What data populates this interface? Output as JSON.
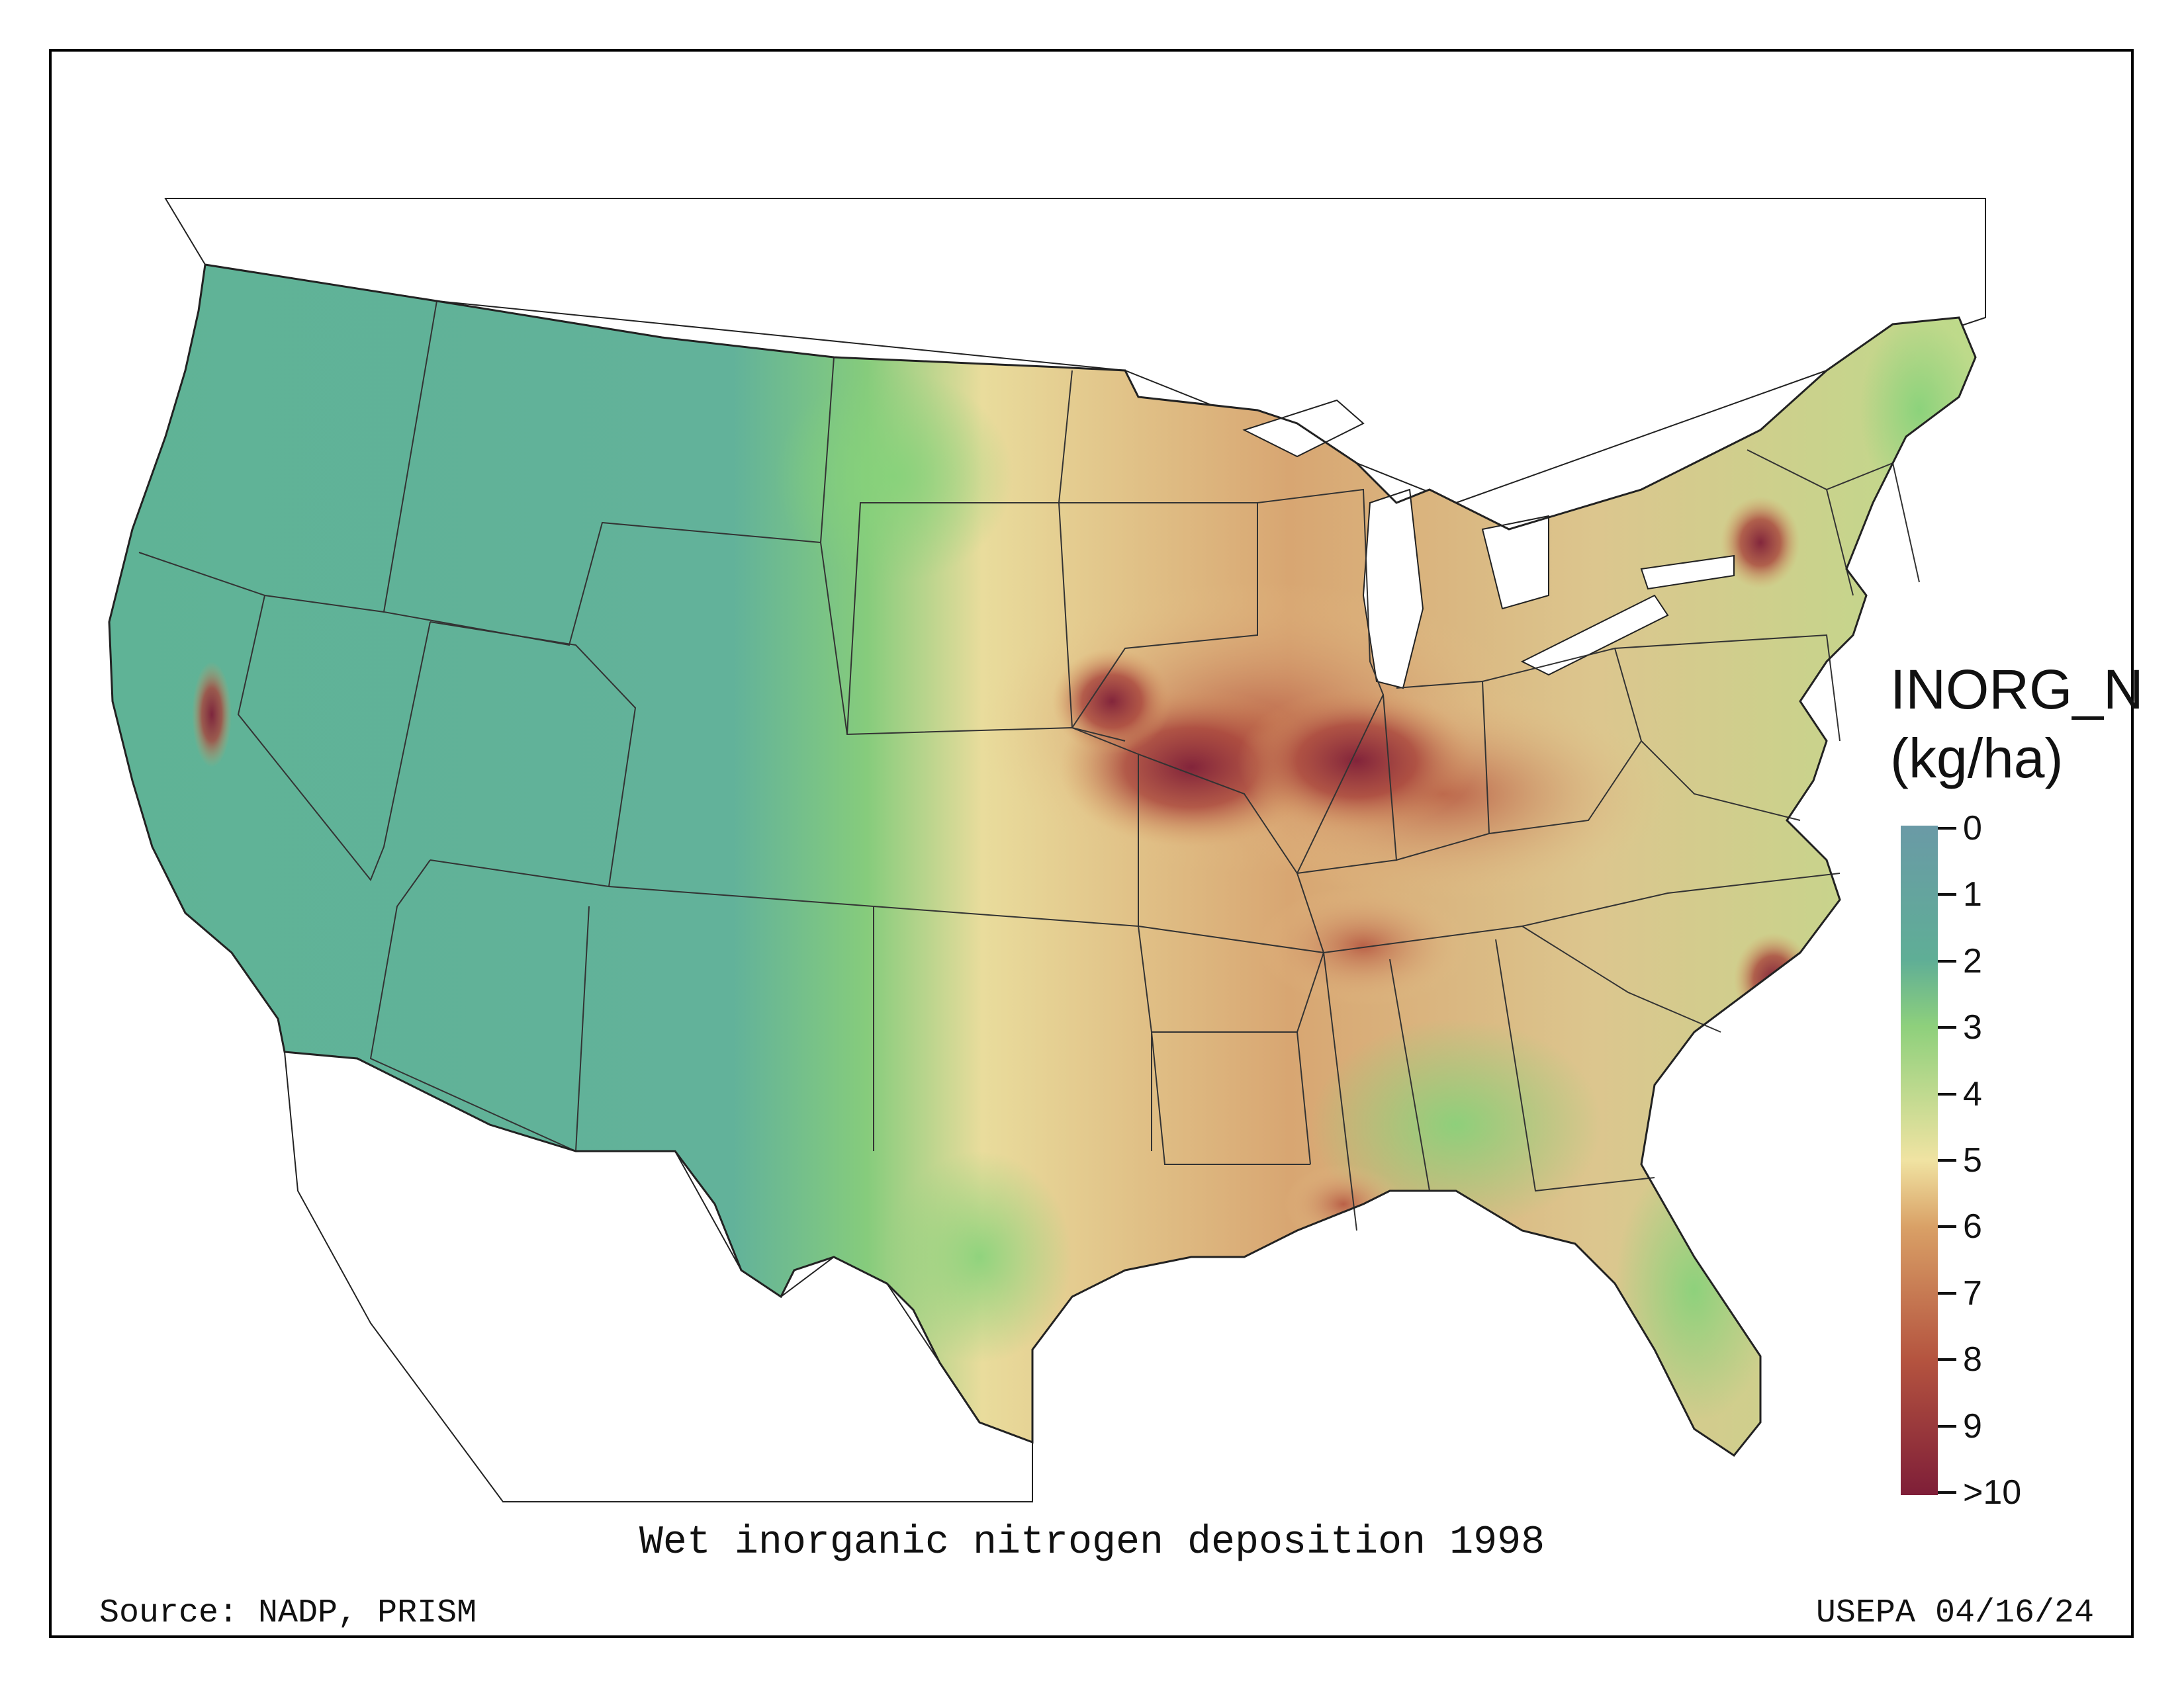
{
  "map": {
    "title": "Wet inorganic nitrogen deposition 1998",
    "source": "Source: NADP, PRISM",
    "stamp": "USEPA 04/16/24",
    "colors": {
      "west": "#5fb396",
      "plains": "#8fd07a",
      "moderate": "#f0e3a2",
      "high": "#c46f4a",
      "very_high": "#8e2a35"
    }
  },
  "legend": {
    "title_line1": "INORG_N",
    "title_line2": "(kg/ha)",
    "ticks": [
      "0",
      "1",
      "2",
      "3",
      "4",
      "5",
      "6",
      "7",
      "8",
      "9",
      ">10"
    ]
  }
}
